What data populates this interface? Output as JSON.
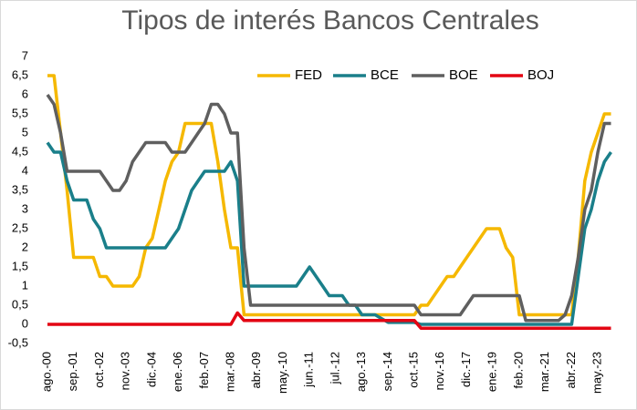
{
  "chart_data": {
    "type": "line",
    "title": "Tipos de interés Bancos Centrales",
    "categories": [
      "ago.-00",
      null,
      null,
      null,
      "sep.-01",
      null,
      null,
      null,
      "oct.-02",
      null,
      null,
      null,
      "nov.-03",
      null,
      null,
      null,
      "dic.-04",
      null,
      null,
      null,
      "ene.-06",
      null,
      null,
      null,
      "feb.-07",
      null,
      null,
      null,
      "mar.-08",
      null,
      null,
      null,
      "abr.-09",
      null,
      null,
      null,
      "may.-10",
      null,
      null,
      null,
      "jun.-11",
      null,
      null,
      null,
      "jul.-12",
      null,
      null,
      null,
      "ago.-13",
      null,
      null,
      null,
      "sep.-14",
      null,
      null,
      null,
      "oct.-15",
      null,
      null,
      null,
      "nov.-16",
      null,
      null,
      null,
      "dic.-17",
      null,
      null,
      null,
      "ene.-19",
      null,
      null,
      null,
      "feb.-20",
      null,
      null,
      null,
      "mar.-21",
      null,
      null,
      null,
      "abr.-22",
      null,
      null,
      null,
      "may.-23",
      null,
      null
    ],
    "series": [
      {
        "name": "FED",
        "color": "#f5b800",
        "values": [
          6.5,
          6.5,
          5,
          3.5,
          1.75,
          1.75,
          1.75,
          1.75,
          1.25,
          1.25,
          1,
          1,
          1,
          1,
          1.25,
          2,
          2.25,
          3,
          3.75,
          4.25,
          4.5,
          5.25,
          5.25,
          5.25,
          5.25,
          5.25,
          4.25,
          3,
          2,
          2,
          0.25,
          0.25,
          0.25,
          0.25,
          0.25,
          0.25,
          0.25,
          0.25,
          0.25,
          0.25,
          0.25,
          0.25,
          0.25,
          0.25,
          0.25,
          0.25,
          0.25,
          0.25,
          0.25,
          0.25,
          0.25,
          0.25,
          0.25,
          0.25,
          0.25,
          0.25,
          0.25,
          0.5,
          0.5,
          0.75,
          1,
          1.25,
          1.25,
          1.5,
          1.75,
          2,
          2.25,
          2.5,
          2.5,
          2.5,
          2,
          1.75,
          0.25,
          0.25,
          0.25,
          0.25,
          0.25,
          0.25,
          0.25,
          0.25,
          0.25,
          1.75,
          3.75,
          4.5,
          5,
          5.5,
          5.5
        ]
      },
      {
        "name": "BCE",
        "color": "#1a7f8a",
        "values": [
          4.75,
          4.5,
          4.5,
          3.75,
          3.25,
          3.25,
          3.25,
          2.75,
          2.5,
          2,
          2,
          2,
          2,
          2,
          2,
          2,
          2,
          2,
          2,
          2.25,
          2.5,
          3,
          3.5,
          3.75,
          4,
          4,
          4,
          4,
          4.25,
          3.75,
          1,
          1,
          1,
          1,
          1,
          1,
          1,
          1,
          1,
          1.25,
          1.5,
          1.25,
          1,
          0.75,
          0.75,
          0.75,
          0.5,
          0.5,
          0.25,
          0.25,
          0.25,
          0.15,
          0.05,
          0.05,
          0.05,
          0.05,
          0.05,
          0,
          0,
          0,
          0,
          0,
          0,
          0,
          0,
          0,
          0,
          0,
          0,
          0,
          0,
          0,
          0,
          0,
          0,
          0,
          0,
          0,
          0,
          0,
          0,
          1.25,
          2.5,
          3,
          3.75,
          4.25,
          4.5
        ]
      },
      {
        "name": "BOE",
        "color": "#5f5f5f",
        "values": [
          6,
          5.75,
          5,
          4,
          4,
          4,
          4,
          4,
          4,
          3.75,
          3.5,
          3.5,
          3.75,
          4.25,
          4.5,
          4.75,
          4.75,
          4.75,
          4.75,
          4.5,
          4.5,
          4.5,
          4.75,
          5,
          5.25,
          5.75,
          5.75,
          5.5,
          5,
          5,
          2,
          0.5,
          0.5,
          0.5,
          0.5,
          0.5,
          0.5,
          0.5,
          0.5,
          0.5,
          0.5,
          0.5,
          0.5,
          0.5,
          0.5,
          0.5,
          0.5,
          0.5,
          0.5,
          0.5,
          0.5,
          0.5,
          0.5,
          0.5,
          0.5,
          0.5,
          0.5,
          0.25,
          0.25,
          0.25,
          0.25,
          0.25,
          0.25,
          0.25,
          0.5,
          0.75,
          0.75,
          0.75,
          0.75,
          0.75,
          0.75,
          0.75,
          0.75,
          0.1,
          0.1,
          0.1,
          0.1,
          0.1,
          0.1,
          0.25,
          0.75,
          1.75,
          3,
          3.5,
          4.5,
          5.25,
          5.25
        ]
      },
      {
        "name": "BOJ",
        "color": "#e30613",
        "values": [
          0,
          0,
          0,
          0,
          0,
          0,
          0,
          0,
          0,
          0,
          0,
          0,
          0,
          0,
          0,
          0,
          0,
          0,
          0,
          0,
          0,
          0,
          0,
          0,
          0,
          0,
          0,
          0,
          0,
          0.3,
          0.1,
          0.1,
          0.1,
          0.1,
          0.1,
          0.1,
          0.1,
          0.1,
          0.1,
          0.1,
          0.1,
          0.1,
          0.1,
          0.1,
          0.1,
          0.1,
          0.1,
          0.1,
          0.1,
          0.1,
          0.1,
          0.1,
          0.1,
          0.1,
          0.1,
          0.1,
          0.1,
          -0.1,
          -0.1,
          -0.1,
          -0.1,
          -0.1,
          -0.1,
          -0.1,
          -0.1,
          -0.1,
          -0.1,
          -0.1,
          -0.1,
          -0.1,
          -0.1,
          -0.1,
          -0.1,
          -0.1,
          -0.1,
          -0.1,
          -0.1,
          -0.1,
          -0.1,
          -0.1,
          -0.1,
          -0.1,
          -0.1,
          -0.1,
          -0.1,
          -0.1,
          -0.1
        ]
      }
    ],
    "ylim": [
      -0.5,
      7
    ],
    "yticks": [
      {
        "value": -0.5,
        "label": "-0,5"
      },
      0,
      {
        "value": 0.5,
        "label": "0,5"
      },
      1,
      {
        "value": 1.5,
        "label": "1,5"
      },
      2,
      {
        "value": 2.5,
        "label": "2,5"
      },
      3,
      {
        "value": 3.5,
        "label": "3,5"
      },
      4,
      {
        "value": 4.5,
        "label": "4,5"
      },
      5,
      {
        "value": 5.5,
        "label": "5,5"
      },
      6,
      {
        "value": 6.5,
        "label": "6,5"
      },
      7
    ],
    "grid": false,
    "legend": "top"
  }
}
